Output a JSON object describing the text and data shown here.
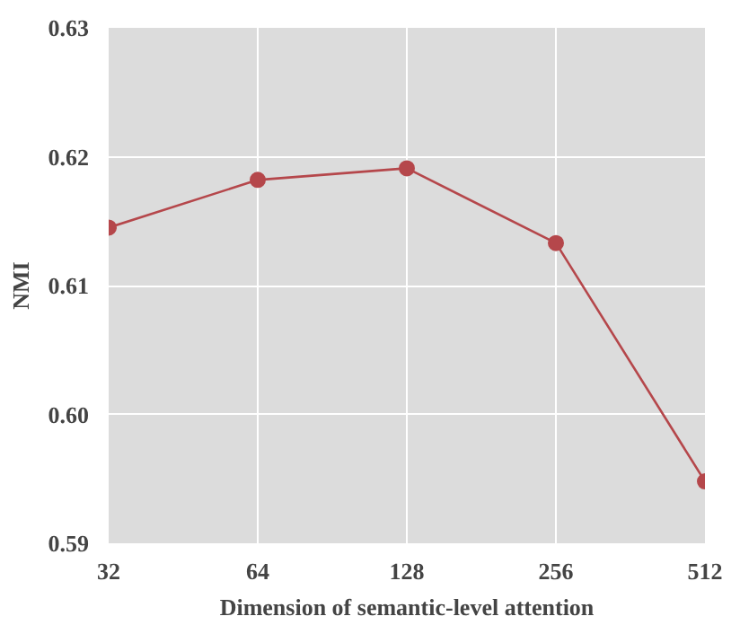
{
  "chart_data": {
    "type": "line",
    "xlabel": "Dimension of semantic-level attention",
    "ylabel": "NMI",
    "categories": [
      "32",
      "64",
      "128",
      "256",
      "512"
    ],
    "series": [
      {
        "color": "#b5474b",
        "values": [
          0.6145,
          0.6182,
          0.6191,
          0.6133,
          0.5948
        ]
      }
    ],
    "ylim": [
      0.59,
      0.63
    ],
    "yticks": [
      0.59,
      {
        "value": 0.6,
        "label": "0.60"
      },
      0.61,
      0.62,
      0.63
    ],
    "grid": true,
    "marker": "circle",
    "line_style": "solid"
  }
}
